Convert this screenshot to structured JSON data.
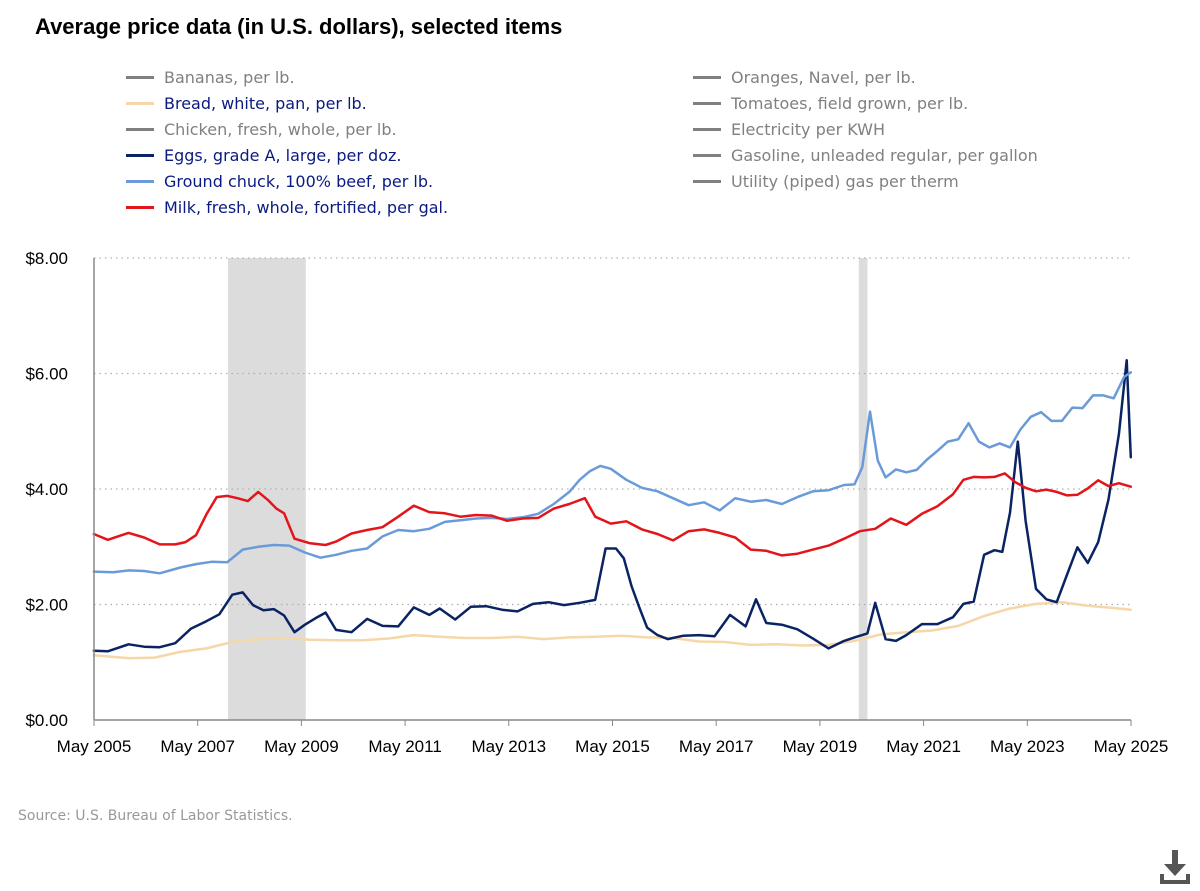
{
  "title": "Average price data (in U.S. dollars), selected items",
  "legend": {
    "left": [
      {
        "label": "Bananas, per lb.",
        "color": "#808080",
        "active": false
      },
      {
        "label": "Bread, white, pan, per lb.",
        "color": "#f5d7a8",
        "active": true
      },
      {
        "label": "Chicken, fresh, whole, per lb.",
        "color": "#808080",
        "active": false
      },
      {
        "label": "Eggs, grade A, large, per doz.",
        "color": "#0a2463",
        "active": true
      },
      {
        "label": "Ground chuck, 100% beef, per lb.",
        "color": "#6a9bd8",
        "active": true
      },
      {
        "label": "Milk, fresh, whole, fortified, per gal.",
        "color": "#e4141b",
        "active": true
      }
    ],
    "right": [
      {
        "label": "Oranges, Navel, per lb.",
        "color": "#808080",
        "active": false
      },
      {
        "label": "Tomatoes, field grown, per lb.",
        "color": "#808080",
        "active": false
      },
      {
        "label": "Electricity per KWH",
        "color": "#808080",
        "active": false
      },
      {
        "label": "Gasoline, unleaded regular, per gallon",
        "color": "#808080",
        "active": false
      },
      {
        "label": "Utility (piped) gas per therm",
        "color": "#808080",
        "active": false
      }
    ]
  },
  "source": "Source: U.S. Bureau of Labor Statistics.",
  "download_icon": "download-icon",
  "chart_data": {
    "type": "line",
    "title": "Average price data (in U.S. dollars), selected items",
    "xlabel": "",
    "ylabel": "",
    "x_range": [
      2005.333,
      2025.333
    ],
    "ylim": [
      0,
      8
    ],
    "y_ticks": [
      {
        "value": 0,
        "label": "$0.00"
      },
      {
        "value": 2,
        "label": "$2.00"
      },
      {
        "value": 4,
        "label": "$4.00"
      },
      {
        "value": 6,
        "label": "$6.00"
      },
      {
        "value": 8,
        "label": "$8.00"
      }
    ],
    "x_ticks": [
      {
        "value": 2005.333,
        "label": "May 2005"
      },
      {
        "value": 2007.333,
        "label": "May 2007"
      },
      {
        "value": 2009.333,
        "label": "May 2009"
      },
      {
        "value": 2011.333,
        "label": "May 2011"
      },
      {
        "value": 2013.333,
        "label": "May 2013"
      },
      {
        "value": 2015.333,
        "label": "May 2015"
      },
      {
        "value": 2017.333,
        "label": "May 2017"
      },
      {
        "value": 2019.333,
        "label": "May 2019"
      },
      {
        "value": 2021.333,
        "label": "May 2021"
      },
      {
        "value": 2023.333,
        "label": "May 2023"
      },
      {
        "value": 2025.333,
        "label": "May 2025"
      }
    ],
    "grid": "horizontal dotted",
    "recessions": [
      [
        2007.917,
        2009.417
      ],
      [
        2020.083,
        2020.25
      ]
    ],
    "series": [
      {
        "name": "Bread, white, pan, per lb.",
        "color": "#f5d7a8",
        "x": [
          2005.33,
          2006.0,
          2006.5,
          2007.0,
          2007.5,
          2008.0,
          2008.5,
          2009.0,
          2009.5,
          2010.0,
          2010.5,
          2011.0,
          2011.5,
          2012.0,
          2012.5,
          2013.0,
          2013.5,
          2014.0,
          2014.5,
          2015.0,
          2015.5,
          2016.0,
          2016.5,
          2017.0,
          2017.5,
          2018.0,
          2018.5,
          2019.0,
          2019.5,
          2020.0,
          2020.5,
          2021.0,
          2021.5,
          2022.0,
          2022.5,
          2023.0,
          2023.5,
          2024.0,
          2024.5,
          2025.0,
          2025.33
        ],
        "values": [
          1.12,
          1.07,
          1.08,
          1.18,
          1.24,
          1.35,
          1.4,
          1.42,
          1.39,
          1.38,
          1.38,
          1.41,
          1.47,
          1.44,
          1.42,
          1.42,
          1.44,
          1.4,
          1.43,
          1.44,
          1.46,
          1.43,
          1.42,
          1.36,
          1.35,
          1.3,
          1.31,
          1.29,
          1.3,
          1.37,
          1.48,
          1.52,
          1.55,
          1.63,
          1.8,
          1.93,
          2.01,
          2.04,
          1.98,
          1.94,
          1.91
        ]
      },
      {
        "name": "Eggs, grade A, large, per doz.",
        "color": "#0a2463",
        "x": [
          2005.33,
          2005.6,
          2006.0,
          2006.3,
          2006.6,
          2006.9,
          2007.2,
          2007.5,
          2007.75,
          2008.0,
          2008.2,
          2008.4,
          2008.6,
          2008.8,
          2009.0,
          2009.2,
          2009.4,
          2009.6,
          2009.8,
          2010.0,
          2010.3,
          2010.6,
          2010.9,
          2011.2,
          2011.5,
          2011.8,
          2012.0,
          2012.3,
          2012.6,
          2012.9,
          2013.2,
          2013.5,
          2013.8,
          2014.1,
          2014.4,
          2014.7,
          2015.0,
          2015.2,
          2015.4,
          2015.55,
          2015.7,
          2015.85,
          2016.0,
          2016.2,
          2016.4,
          2016.7,
          2017.0,
          2017.3,
          2017.6,
          2017.9,
          2018.1,
          2018.3,
          2018.6,
          2018.9,
          2019.2,
          2019.5,
          2019.8,
          2020.0,
          2020.25,
          2020.4,
          2020.6,
          2020.8,
          2021.0,
          2021.3,
          2021.6,
          2021.9,
          2022.1,
          2022.3,
          2022.5,
          2022.7,
          2022.85,
          2023.0,
          2023.15,
          2023.3,
          2023.5,
          2023.7,
          2023.9,
          2024.1,
          2024.3,
          2024.5,
          2024.7,
          2024.9,
          2025.1,
          2025.25,
          2025.33
        ],
        "values": [
          1.2,
          1.19,
          1.31,
          1.27,
          1.26,
          1.33,
          1.58,
          1.71,
          1.83,
          2.17,
          2.21,
          1.99,
          1.9,
          1.92,
          1.81,
          1.52,
          1.65,
          1.76,
          1.86,
          1.56,
          1.52,
          1.75,
          1.63,
          1.62,
          1.95,
          1.82,
          1.93,
          1.74,
          1.96,
          1.97,
          1.91,
          1.88,
          2.01,
          2.04,
          1.99,
          2.03,
          2.08,
          2.97,
          2.97,
          2.8,
          2.32,
          1.95,
          1.6,
          1.47,
          1.4,
          1.46,
          1.47,
          1.45,
          1.82,
          1.62,
          2.09,
          1.68,
          1.65,
          1.57,
          1.41,
          1.24,
          1.37,
          1.43,
          1.5,
          2.03,
          1.4,
          1.37,
          1.47,
          1.66,
          1.66,
          1.78,
          2.01,
          2.05,
          2.86,
          2.94,
          2.91,
          3.59,
          4.82,
          3.45,
          2.27,
          2.09,
          2.04,
          2.52,
          2.99,
          2.72,
          3.08,
          3.82,
          4.95,
          6.23,
          4.55
        ]
      },
      {
        "name": "Ground chuck, 100% beef, per lb.",
        "color": "#6a9bd8",
        "x": [
          2005.33,
          2005.7,
          2006.0,
          2006.3,
          2006.6,
          2007.0,
          2007.3,
          2007.6,
          2007.9,
          2008.2,
          2008.5,
          2008.8,
          2009.1,
          2009.4,
          2009.7,
          2010.0,
          2010.3,
          2010.6,
          2010.9,
          2011.2,
          2011.5,
          2011.8,
          2012.1,
          2012.4,
          2012.7,
          2013.0,
          2013.3,
          2013.6,
          2013.9,
          2014.2,
          2014.5,
          2014.7,
          2014.9,
          2015.1,
          2015.3,
          2015.6,
          2015.9,
          2016.2,
          2016.5,
          2016.8,
          2017.1,
          2017.4,
          2017.7,
          2018.0,
          2018.3,
          2018.6,
          2018.9,
          2019.2,
          2019.5,
          2019.8,
          2020.0,
          2020.15,
          2020.3,
          2020.45,
          2020.6,
          2020.8,
          2021.0,
          2021.2,
          2021.4,
          2021.6,
          2021.8,
          2022.0,
          2022.2,
          2022.4,
          2022.6,
          2022.8,
          2023.0,
          2023.2,
          2023.4,
          2023.6,
          2023.8,
          2024.0,
          2024.2,
          2024.4,
          2024.6,
          2024.8,
          2025.0,
          2025.2,
          2025.33
        ],
        "values": [
          2.57,
          2.56,
          2.59,
          2.58,
          2.54,
          2.64,
          2.7,
          2.74,
          2.73,
          2.95,
          3.0,
          3.03,
          3.02,
          2.9,
          2.81,
          2.86,
          2.93,
          2.97,
          3.18,
          3.29,
          3.27,
          3.31,
          3.43,
          3.46,
          3.49,
          3.5,
          3.48,
          3.51,
          3.57,
          3.74,
          3.95,
          4.16,
          4.31,
          4.4,
          4.35,
          4.16,
          4.02,
          3.96,
          3.84,
          3.72,
          3.77,
          3.63,
          3.84,
          3.78,
          3.81,
          3.74,
          3.86,
          3.96,
          3.98,
          4.07,
          4.08,
          4.38,
          5.34,
          4.49,
          4.2,
          4.34,
          4.29,
          4.33,
          4.51,
          4.66,
          4.82,
          4.86,
          5.14,
          4.82,
          4.72,
          4.79,
          4.72,
          5.03,
          5.25,
          5.33,
          5.18,
          5.18,
          5.41,
          5.4,
          5.62,
          5.62,
          5.57,
          5.94,
          6.02
        ]
      },
      {
        "name": "Milk, fresh, whole, fortified, per gal.",
        "color": "#e4141b",
        "x": [
          2005.33,
          2005.6,
          2006.0,
          2006.3,
          2006.6,
          2006.9,
          2007.1,
          2007.3,
          2007.5,
          2007.7,
          2007.9,
          2008.1,
          2008.3,
          2008.5,
          2008.7,
          2008.85,
          2009.0,
          2009.2,
          2009.5,
          2009.8,
          2010.0,
          2010.3,
          2010.6,
          2010.9,
          2011.2,
          2011.5,
          2011.8,
          2012.1,
          2012.4,
          2012.7,
          2013.0,
          2013.3,
          2013.6,
          2013.9,
          2014.2,
          2014.5,
          2014.8,
          2015.0,
          2015.3,
          2015.6,
          2015.9,
          2016.2,
          2016.5,
          2016.8,
          2017.1,
          2017.4,
          2017.7,
          2018.0,
          2018.3,
          2018.6,
          2018.9,
          2019.2,
          2019.5,
          2019.8,
          2020.1,
          2020.4,
          2020.7,
          2021.0,
          2021.3,
          2021.6,
          2021.9,
          2022.1,
          2022.3,
          2022.5,
          2022.7,
          2022.9,
          2023.1,
          2023.3,
          2023.5,
          2023.7,
          2023.9,
          2024.1,
          2024.3,
          2024.5,
          2024.7,
          2024.9,
          2025.1,
          2025.33
        ],
        "values": [
          3.22,
          3.12,
          3.24,
          3.16,
          3.04,
          3.04,
          3.08,
          3.2,
          3.56,
          3.86,
          3.88,
          3.84,
          3.79,
          3.95,
          3.8,
          3.66,
          3.58,
          3.14,
          3.06,
          3.03,
          3.09,
          3.23,
          3.29,
          3.34,
          3.52,
          3.71,
          3.6,
          3.58,
          3.52,
          3.55,
          3.54,
          3.45,
          3.49,
          3.5,
          3.66,
          3.74,
          3.84,
          3.52,
          3.4,
          3.44,
          3.3,
          3.22,
          3.11,
          3.27,
          3.3,
          3.24,
          3.16,
          2.95,
          2.93,
          2.85,
          2.88,
          2.95,
          3.02,
          3.14,
          3.27,
          3.31,
          3.49,
          3.38,
          3.57,
          3.7,
          3.91,
          4.16,
          4.21,
          4.2,
          4.21,
          4.27,
          4.12,
          4.02,
          3.96,
          3.99,
          3.95,
          3.89,
          3.9,
          4.01,
          4.15,
          4.05,
          4.1,
          4.04
        ]
      }
    ]
  }
}
